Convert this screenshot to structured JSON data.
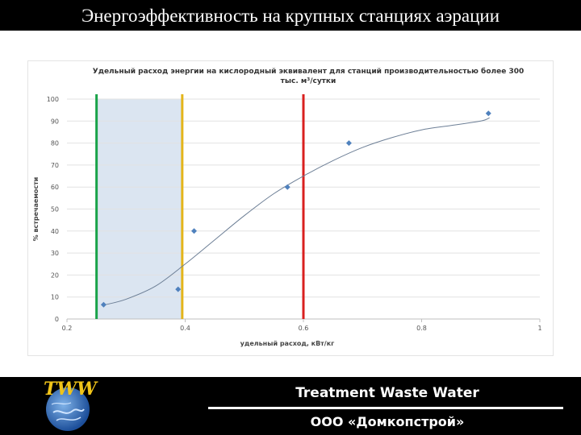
{
  "header": {
    "title": "Энергоэффективность на крупных станциях аэрации"
  },
  "chart_data": {
    "type": "scatter",
    "title_line1": "Удельный расход энергии на кислородный эквивалент для станций производительностью более 300",
    "title_line2": "тыс. м³/сутки",
    "xlabel": "удельный расход, кВт/кг",
    "ylabel": "% встречаемости",
    "xlim": [
      0.2,
      1
    ],
    "ylim": [
      0,
      100
    ],
    "x_ticks": [
      0.2,
      0.4,
      0.6,
      0.8,
      1
    ],
    "x_tick_labels": [
      "0.2",
      "0.4",
      "0.6",
      "0.8",
      "1"
    ],
    "y_ticks": [
      0,
      10,
      20,
      30,
      40,
      50,
      60,
      70,
      80,
      90,
      100
    ],
    "y_tick_labels": [
      "0",
      "10",
      "20",
      "30",
      "40",
      "50",
      "60",
      "70",
      "80",
      "90",
      "100"
    ],
    "grid": "horizontal",
    "points": [
      {
        "x": 0.262,
        "y": 6.5
      },
      {
        "x": 0.388,
        "y": 13.5
      },
      {
        "x": 0.415,
        "y": 40
      },
      {
        "x": 0.573,
        "y": 60
      },
      {
        "x": 0.677,
        "y": 80
      },
      {
        "x": 0.913,
        "y": 93.5
      }
    ],
    "trend_x": [
      0.265,
      0.3,
      0.35,
      0.4,
      0.45,
      0.5,
      0.55,
      0.6,
      0.65,
      0.7,
      0.75,
      0.8,
      0.85,
      0.9,
      0.915
    ],
    "trend_y": [
      6.5,
      9,
      15,
      25,
      36,
      47,
      57,
      65,
      72,
      78,
      82.5,
      86,
      88,
      90,
      91.5
    ],
    "highlight_band": {
      "x_from": 0.25,
      "x_to": 0.395,
      "color": "#dbe5f1"
    },
    "vertical_lines": [
      {
        "x": 0.25,
        "color": "#1aa34a"
      },
      {
        "x": 0.395,
        "color": "#e3b51b"
      },
      {
        "x": 0.6,
        "color": "#d9201f"
      }
    ],
    "marker_color": "#4f81bd"
  },
  "footer": {
    "logo_text": "TWW",
    "brand": "Treatment Waste Water",
    "company": "ООО «Домкопстрой»"
  }
}
